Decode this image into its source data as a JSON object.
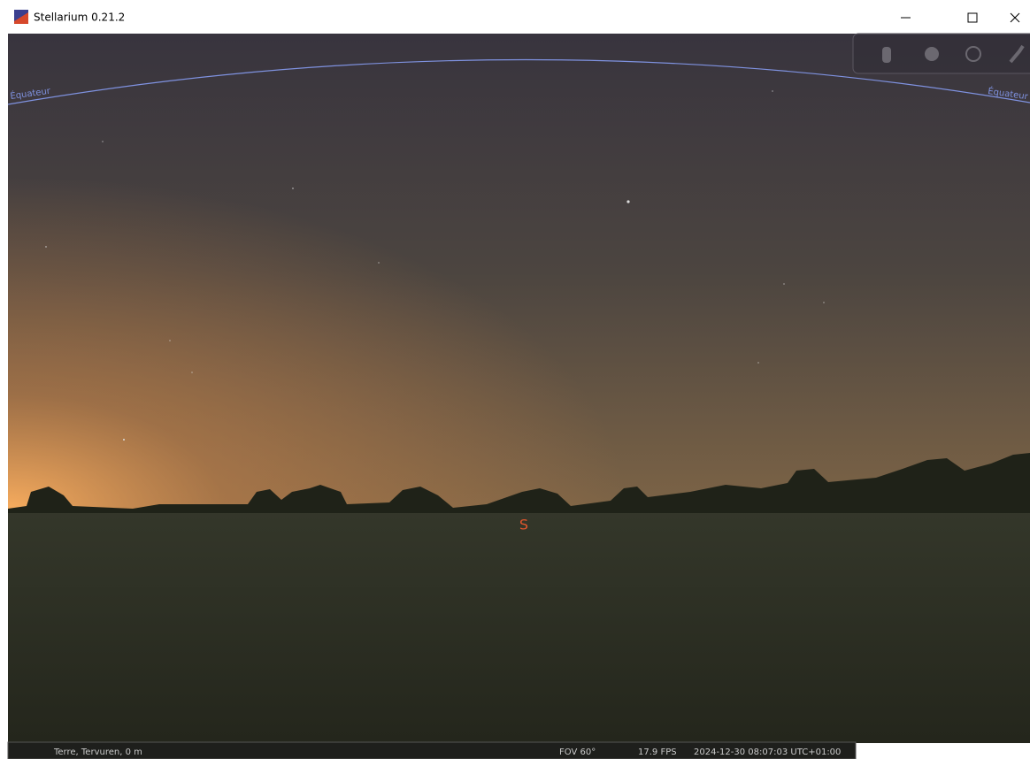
{
  "window": {
    "title": "Stellarium 0.21.2"
  },
  "sky": {
    "equator_label_left": "Équateur",
    "equator_label_right": "Équateur",
    "cardinal": "S"
  },
  "status_bar": {
    "location": "Terre, Tervuren, 0 m",
    "fov": "FOV 60°",
    "fps": "17.9 FPS",
    "datetime": "2024-12-30 08:07:03 UTC+01:00"
  }
}
